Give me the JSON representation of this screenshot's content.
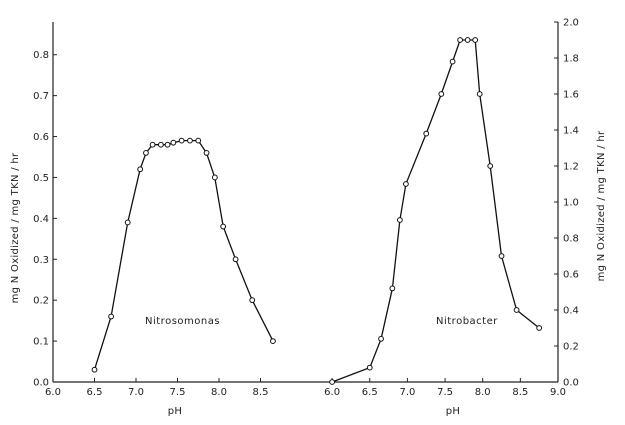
{
  "chart_data": [
    {
      "type": "line",
      "xlabel": "pH",
      "ylabel": "mg N Oxidized / mg TKN / hr",
      "xlim": [
        6.0,
        9.0
      ],
      "ylim": [
        0.0,
        0.88
      ],
      "xticks": [
        6.0,
        6.5,
        7.0,
        7.5,
        8.0,
        8.5
      ],
      "xtick_labels": [
        "6.0",
        "6.5",
        "7.0",
        "7.5",
        "8.0",
        "8.5"
      ],
      "yticks": [
        0.0,
        0.1,
        0.2,
        0.3,
        0.4,
        0.5,
        0.6,
        0.7,
        0.8
      ],
      "ytick_labels": [
        "0.0",
        "0.1",
        "0.2",
        "0.3",
        "0.4",
        "0.5",
        "0.6",
        "0.7",
        "0.8"
      ],
      "y_axis_side": "left",
      "grid": false,
      "annotation": "Nitrosomonas",
      "series": [
        {
          "x": [
            6.5,
            6.7,
            6.9,
            7.05,
            7.12,
            7.2,
            7.3,
            7.38,
            7.45,
            7.55,
            7.65,
            7.75,
            7.85,
            7.95,
            8.05,
            8.2,
            8.4,
            8.65
          ],
          "y": [
            0.03,
            0.16,
            0.39,
            0.52,
            0.56,
            0.58,
            0.58,
            0.58,
            0.585,
            0.59,
            0.59,
            0.59,
            0.56,
            0.5,
            0.38,
            0.3,
            0.2,
            0.1
          ]
        }
      ]
    },
    {
      "type": "line",
      "xlabel": "pH",
      "ylabel": "mg N Oxidized / mg TKN / hr",
      "xlim": [
        5.6,
        9.0
      ],
      "ylim": [
        0.0,
        2.0
      ],
      "xticks": [
        6.0,
        6.5,
        7.0,
        7.5,
        8.0,
        8.5,
        9.0
      ],
      "xtick_labels": [
        "6.0",
        "6.5",
        "7.0",
        "7.5",
        "8.0",
        "8.5",
        "9.0"
      ],
      "yticks": [
        0.0,
        0.2,
        0.4,
        0.6,
        0.8,
        1.0,
        1.2,
        1.4,
        1.6,
        1.8,
        2.0
      ],
      "ytick_labels": [
        "0.0",
        "0.2",
        "0.4",
        "0.6",
        "0.8",
        "1.0",
        "1.2",
        "1.4",
        "1.6",
        "1.8",
        "2.0"
      ],
      "y_axis_side": "right",
      "grid": false,
      "annotation": "Nitrobacter",
      "series": [
        {
          "x": [
            6.0,
            6.5,
            6.65,
            6.8,
            6.9,
            6.98,
            7.25,
            7.45,
            7.6,
            7.7,
            7.8,
            7.9,
            7.96,
            8.1,
            8.25,
            8.45,
            8.75
          ],
          "y": [
            0.0,
            0.08,
            0.24,
            0.52,
            0.9,
            1.1,
            1.38,
            1.6,
            1.78,
            1.9,
            1.9,
            1.9,
            1.6,
            1.2,
            0.7,
            0.4,
            0.3
          ]
        }
      ]
    }
  ]
}
